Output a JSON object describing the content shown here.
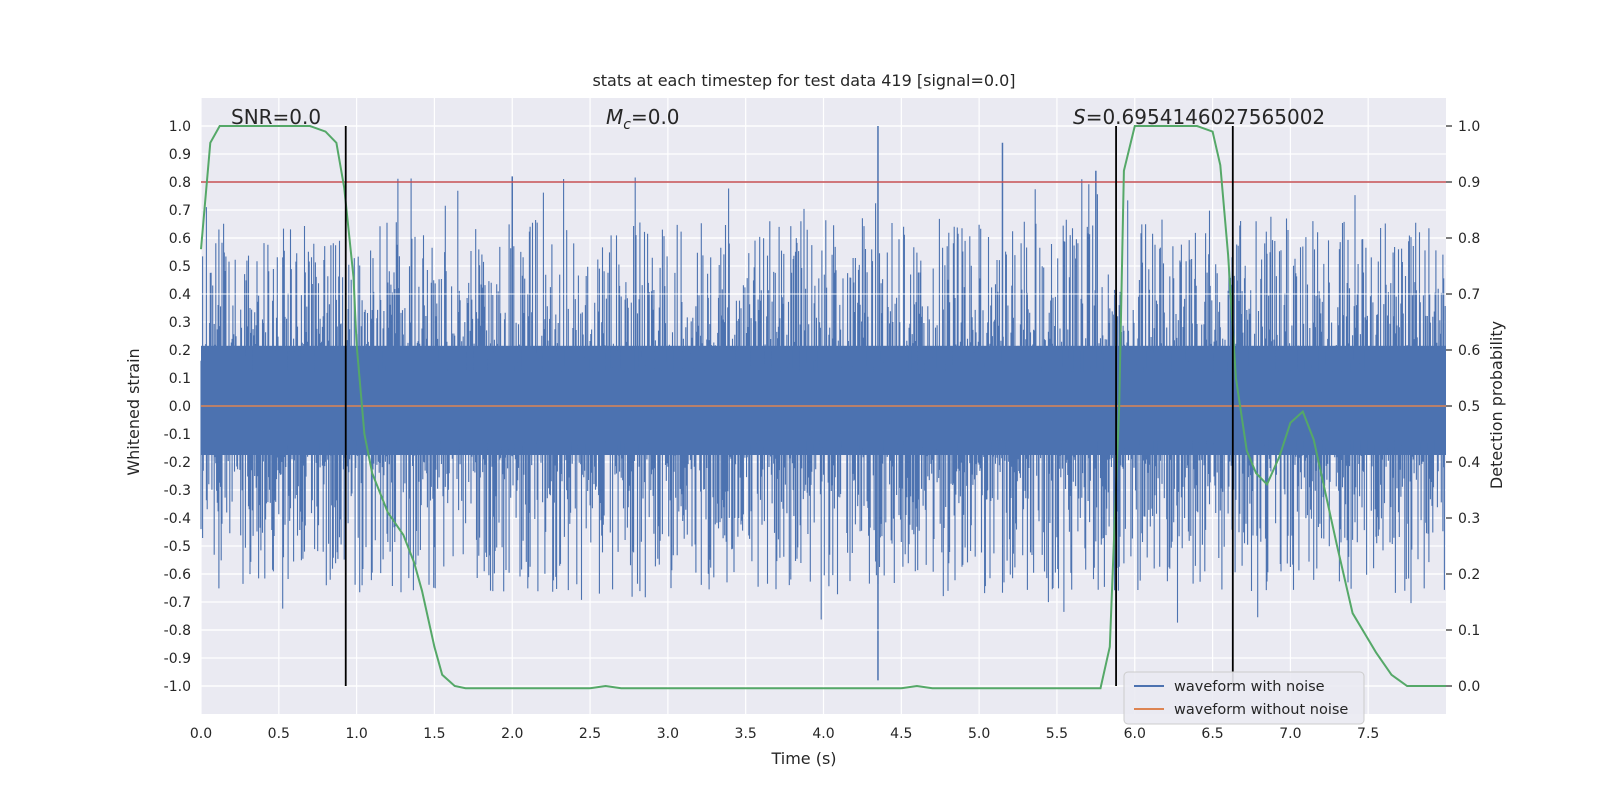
{
  "chart_data": {
    "type": "line",
    "title": "stats at each timestep for test data 419 [signal=0.0]",
    "xlabel": "Time (s)",
    "ylabel": "Whitened strain",
    "y2label": "Detection probability",
    "xlim": [
      0.0,
      8.0
    ],
    "ylim": [
      -1.1,
      1.1
    ],
    "y2lim": [
      -0.05,
      1.05
    ],
    "xticks": [
      "0.0",
      "0.5",
      "1.0",
      "1.5",
      "2.0",
      "2.5",
      "3.0",
      "3.5",
      "4.0",
      "4.5",
      "5.0",
      "5.5",
      "6.0",
      "6.5",
      "7.0",
      "7.5"
    ],
    "xtick_values": [
      0.0,
      0.5,
      1.0,
      1.5,
      2.0,
      2.5,
      3.0,
      3.5,
      4.0,
      4.5,
      5.0,
      5.5,
      6.0,
      6.5,
      7.0,
      7.5
    ],
    "yticks": [
      "1.0",
      "0.9",
      "0.8",
      "0.7",
      "0.6",
      "0.5",
      "0.4",
      "0.3",
      "0.2",
      "0.1",
      "0.0",
      "-0.1",
      "-0.2",
      "-0.3",
      "-0.4",
      "-0.5",
      "-0.6",
      "-0.7",
      "-0.8",
      "-0.9",
      "-1.0"
    ],
    "ytick_values": [
      1.0,
      0.9,
      0.8,
      0.7,
      0.6,
      0.5,
      0.4,
      0.3,
      0.2,
      0.1,
      0.0,
      -0.1,
      -0.2,
      -0.3,
      -0.4,
      -0.5,
      -0.6,
      -0.7,
      -0.8,
      -0.9,
      -1.0
    ],
    "y2ticks": [
      "1.0",
      "0.9",
      "0.8",
      "0.7",
      "0.6",
      "0.5",
      "0.4",
      "0.3",
      "0.2",
      "0.1",
      "0.0"
    ],
    "y2tick_values": [
      1.0,
      0.9,
      0.8,
      0.7,
      0.6,
      0.5,
      0.4,
      0.3,
      0.2,
      0.1,
      0.0
    ],
    "grid": true,
    "annotations": {
      "snr": "SNR=0.0",
      "mc_symbol": "M",
      "mc_subscript": "c",
      "mc_value": "=0.0",
      "s_symbol": "S",
      "s_value": "=0.6954146027565002"
    },
    "series": [
      {
        "name": "waveform with noise",
        "color": "#4c72b0",
        "axis": "left",
        "description": "whitened noise strain, roughly within ±0.5 with spikes up to ±1.0",
        "positive_envelope": {
          "body": 0.43,
          "peaks": [
            [
              4.35,
              1.0
            ],
            [
              5.15,
              0.94
            ],
            [
              4.35,
              -0.98
            ],
            [
              2.0,
              0.82
            ],
            [
              5.75,
              0.84
            ]
          ]
        }
      },
      {
        "name": "waveform without noise",
        "color": "#dd8452",
        "axis": "left",
        "x": [
          0.0,
          8.0
        ],
        "y": [
          0.0,
          0.0
        ]
      },
      {
        "name": "detection probability",
        "color": "#55a868",
        "axis": "right",
        "x": [
          0.0,
          0.06,
          0.12,
          0.2,
          0.3,
          0.5,
          0.7,
          0.8,
          0.87,
          0.92,
          0.98,
          1.0,
          1.05,
          1.1,
          1.2,
          1.3,
          1.37,
          1.42,
          1.5,
          1.55,
          1.63,
          1.7,
          2.0,
          2.5,
          2.6,
          2.7,
          3.0,
          4.0,
          4.5,
          4.6,
          4.7,
          5.0,
          5.7,
          5.78,
          5.84,
          5.9,
          5.93,
          6.0,
          6.4,
          6.5,
          6.55,
          6.6,
          6.65,
          6.72,
          6.78,
          6.85,
          6.93,
          7.0,
          7.08,
          7.15,
          7.3,
          7.4,
          7.55,
          7.65,
          7.75,
          7.8,
          7.9,
          8.0
        ],
        "y": [
          0.78,
          0.97,
          1.0,
          1.0,
          1.0,
          1.0,
          1.0,
          0.99,
          0.97,
          0.89,
          0.73,
          0.61,
          0.45,
          0.38,
          0.31,
          0.27,
          0.22,
          0.17,
          0.07,
          0.02,
          0.0,
          -0.004,
          -0.004,
          -0.004,
          0.0,
          -0.004,
          -0.004,
          -0.004,
          -0.004,
          0.0,
          -0.004,
          -0.004,
          -0.004,
          -0.004,
          0.07,
          0.5,
          0.92,
          1.0,
          1.0,
          0.99,
          0.93,
          0.77,
          0.55,
          0.42,
          0.38,
          0.36,
          0.41,
          0.47,
          0.49,
          0.44,
          0.25,
          0.13,
          0.06,
          0.02,
          0.0,
          0.0,
          0.0,
          0.0
        ]
      }
    ],
    "hlines": [
      {
        "name": "threshold",
        "color": "#c44e52",
        "axis": "right",
        "value": 0.9
      }
    ],
    "vlines": [
      {
        "name": "detection-boundary",
        "color": "#000000",
        "x": 0.93,
        "ymin": 0.0,
        "ymax": 1.0
      },
      {
        "name": "detection-boundary",
        "color": "#000000",
        "x": 5.88,
        "ymin": 0.0,
        "ymax": 1.0
      },
      {
        "name": "detection-boundary",
        "color": "#000000",
        "x": 6.63,
        "ymin": 0.0,
        "ymax": 1.0
      }
    ],
    "legend": {
      "position": "lower-right",
      "entries": [
        {
          "label": "waveform with noise",
          "color": "#4c72b0"
        },
        {
          "label": "waveform without noise",
          "color": "#dd8452"
        }
      ]
    },
    "colors": {
      "plot_bg": "#eaeaf2",
      "grid": "#ffffff"
    }
  }
}
